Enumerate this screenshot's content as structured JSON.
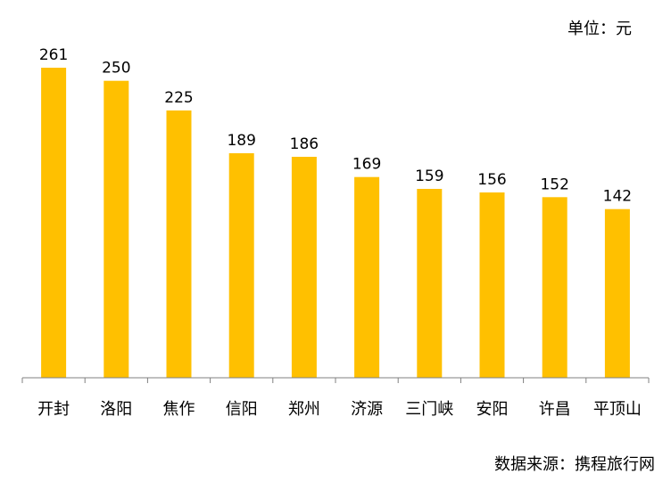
{
  "chart_data": {
    "type": "bar",
    "unit_label": "单位：元",
    "source_label": "数据来源：携程旅行网",
    "categories": [
      "开封",
      "洛阳",
      "焦作",
      "信阳",
      "郑州",
      "济源",
      "三门峡",
      "安阳",
      "许昌",
      "平顶山"
    ],
    "values": [
      261,
      250,
      225,
      189,
      186,
      169,
      159,
      156,
      152,
      142
    ],
    "ylim": [
      0,
      261
    ],
    "bar_color": "#FFC000",
    "axis_color": "#808080",
    "grid": false,
    "legend": "none"
  }
}
